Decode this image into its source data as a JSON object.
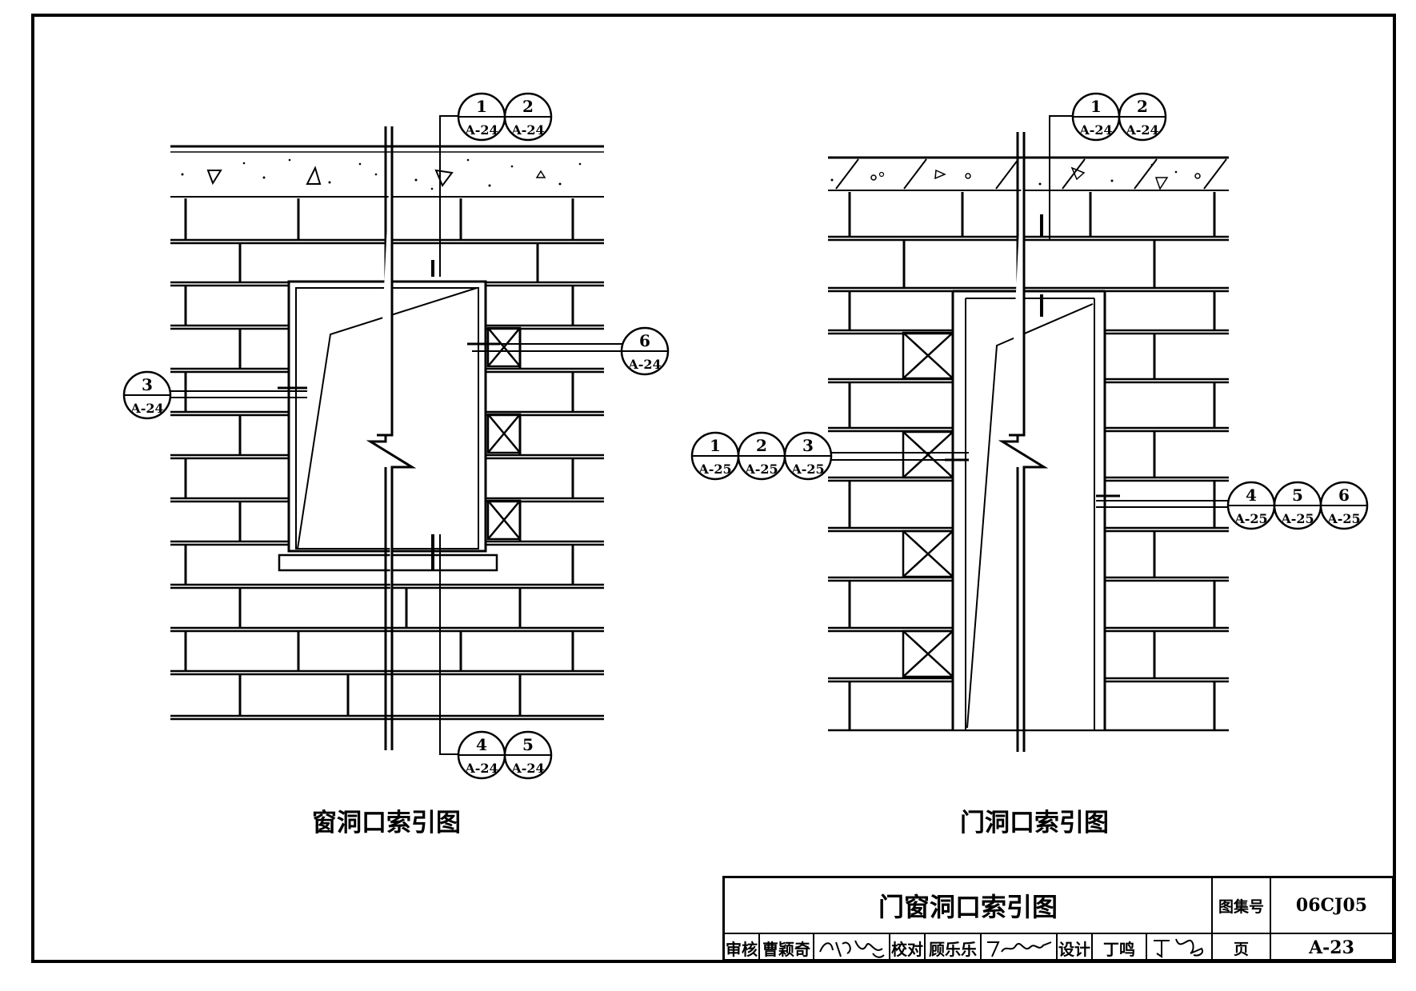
{
  "window_elevation": {
    "caption": "窗洞口索引图",
    "refs": [
      {
        "num": "1",
        "sheet": "A-24"
      },
      {
        "num": "2",
        "sheet": "A-24"
      },
      {
        "num": "3",
        "sheet": "A-24"
      },
      {
        "num": "4",
        "sheet": "A-24"
      },
      {
        "num": "5",
        "sheet": "A-24"
      },
      {
        "num": "6",
        "sheet": "A-24"
      }
    ]
  },
  "door_elevation": {
    "caption": "门洞口索引图",
    "refs": [
      {
        "num": "1",
        "sheet": "A-24"
      },
      {
        "num": "2",
        "sheet": "A-24"
      },
      {
        "num": "1",
        "sheet": "A-25"
      },
      {
        "num": "2",
        "sheet": "A-25"
      },
      {
        "num": "3",
        "sheet": "A-25"
      },
      {
        "num": "4",
        "sheet": "A-25"
      },
      {
        "num": "5",
        "sheet": "A-25"
      },
      {
        "num": "6",
        "sheet": "A-25"
      }
    ]
  },
  "title_block": {
    "title": "门窗洞口索引图",
    "atlas_label": "图集号",
    "atlas_number": "06CJ05",
    "page_label": "页",
    "page_number": "A-23",
    "review_label": "审核",
    "reviewer": "曹颖奇",
    "check_label": "校对",
    "checker": "顾乐乐",
    "design_label": "设计",
    "designer": "丁鸣"
  }
}
